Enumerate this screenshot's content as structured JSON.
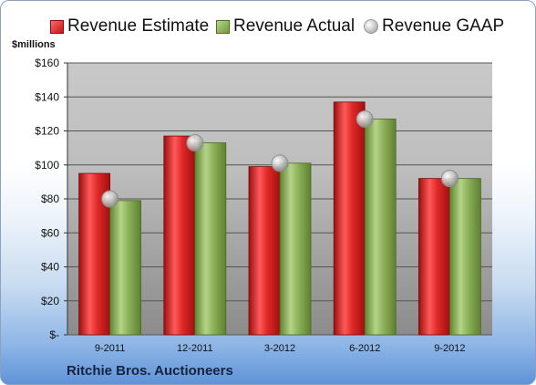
{
  "chart_data": {
    "type": "bar",
    "categories": [
      "9-2011",
      "12-2011",
      "3-2012",
      "6-2012",
      "9-2012"
    ],
    "series": [
      {
        "name": "Revenue Estimate",
        "kind": "bar",
        "color": "#d42020",
        "values": [
          95,
          117,
          99,
          137,
          92
        ]
      },
      {
        "name": "Revenue Actual",
        "kind": "bar",
        "color": "#8db05a",
        "values": [
          79,
          113,
          101,
          127,
          92
        ]
      },
      {
        "name": "Revenue GAAP",
        "kind": "marker",
        "color": "#b8b8b8",
        "values": [
          80,
          113,
          101,
          127,
          92
        ]
      }
    ],
    "ylabel": "$millions",
    "ylim": [
      0,
      160
    ],
    "yticks": [
      0,
      20,
      40,
      60,
      80,
      100,
      120,
      140,
      160
    ],
    "ytick_labels": [
      "$-",
      "$20",
      "$40",
      "$60",
      "$80",
      "$100",
      "$120",
      "$140",
      "$160"
    ],
    "grid": true,
    "legend_position": "top"
  },
  "legend": {
    "estimate": "Revenue Estimate",
    "actual": "Revenue Actual",
    "gaap": "Revenue GAAP"
  },
  "company_name": "Ritchie Bros. Auctioneers"
}
